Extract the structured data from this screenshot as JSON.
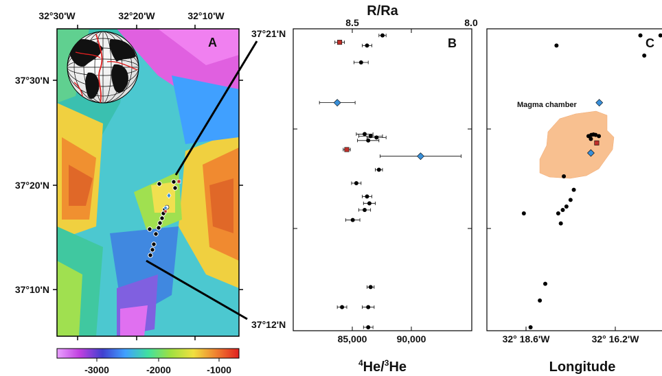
{
  "map": {
    "panel_label": "A",
    "lon_ticks": [
      "32°30'W",
      "32°20'W",
      "32°10'W"
    ],
    "lat_ticks": [
      "37°30'N",
      "37°20'N",
      "37°10'N"
    ],
    "profile_start": "37°21'N",
    "profile_end": "37°12'N",
    "colorbar_ticks": [
      "-3000",
      "-2000",
      "-1000"
    ],
    "colorbar_colors": [
      "#e9a0ff",
      "#c040e0",
      "#4040d0",
      "#40a0ff",
      "#40e0a0",
      "#a0e040",
      "#f0e040",
      "#f08030",
      "#e02020"
    ]
  },
  "panel_b": {
    "panel_label": "B",
    "top_axis_title": "R/Ra",
    "top_ticks": [
      "8.5",
      "8.0"
    ],
    "bottom_ticks": [
      "85,000",
      "90,000"
    ],
    "x_title_sup": "4",
    "x_title_a": "He/",
    "x_title_sup2": "3",
    "x_title_b": "He"
  },
  "panel_c": {
    "panel_label": "C",
    "bottom_ticks": [
      "32° 18.6'W",
      "32° 16.2'W"
    ],
    "x_title": "Longitude",
    "magma_label": "Magma chamber",
    "chamber_color": "#f8c090"
  },
  "chart_data": [
    {
      "type": "scatter",
      "title": "",
      "xlabel": "4He/3He",
      "ylabel": "",
      "secondary_xlabel": "R/Ra",
      "xlim": [
        80500,
        95500
      ],
      "ylim": [
        37.2,
        37.35
      ],
      "series": [
        {
          "marker": "circle",
          "color": "#000000",
          "points": [
            {
              "x": 88000,
              "y": 37.3467,
              "err": 300
            },
            {
              "x": 86700,
              "y": 37.3417,
              "err": 400
            },
            {
              "x": 86200,
              "y": 37.3333,
              "err": 600
            },
            {
              "x": 86500,
              "y": 37.2977,
              "err": 700
            },
            {
              "x": 87000,
              "y": 37.2967,
              "err": 1000
            },
            {
              "x": 87500,
              "y": 37.296,
              "err": 800
            },
            {
              "x": 86800,
              "y": 37.2945,
              "err": 900
            },
            {
              "x": 87700,
              "y": 37.28,
              "err": 300
            },
            {
              "x": 85800,
              "y": 37.2733,
              "err": 400
            },
            {
              "x": 86700,
              "y": 37.2667,
              "err": 400
            },
            {
              "x": 86900,
              "y": 37.2633,
              "err": 500
            },
            {
              "x": 86500,
              "y": 37.26,
              "err": 500
            },
            {
              "x": 85500,
              "y": 37.255,
              "err": 600
            },
            {
              "x": 87000,
              "y": 37.2217,
              "err": 300
            },
            {
              "x": 84600,
              "y": 37.2117,
              "err": 400
            },
            {
              "x": 86800,
              "y": 37.2117,
              "err": 500
            },
            {
              "x": 86800,
              "y": 37.2017,
              "err": 400
            }
          ]
        },
        {
          "marker": "square",
          "color": "#c0302a",
          "points": [
            {
              "x": 84400,
              "y": 37.3433,
              "err": 400
            },
            {
              "x": 85000,
              "y": 37.29,
              "err": 300
            }
          ]
        },
        {
          "marker": "diamond",
          "color": "#3a8fd8",
          "points": [
            {
              "x": 84200,
              "y": 37.3133,
              "err": 1500
            },
            {
              "x": 91200,
              "y": 37.2867,
              "err": 3400
            }
          ]
        }
      ]
    },
    {
      "type": "scatter",
      "title": "",
      "xlabel": "Longitude",
      "ylabel": "",
      "xlim": [
        -32.334,
        -32.253
      ],
      "ylim": [
        37.2,
        37.35
      ],
      "series": [
        {
          "marker": "circle",
          "color": "#000000",
          "points": [
            {
              "x": -32.3018,
              "y": 37.3417
            },
            {
              "x": -32.263,
              "y": 37.3467
            },
            {
              "x": -32.2612,
              "y": 37.3367
            },
            {
              "x": -32.2537,
              "y": 37.3467
            },
            {
              "x": -32.287,
              "y": 37.2967
            },
            {
              "x": -32.2857,
              "y": 37.2973
            },
            {
              "x": -32.2847,
              "y": 37.2975
            },
            {
              "x": -32.2837,
              "y": 37.2973
            },
            {
              "x": -32.2822,
              "y": 37.2967
            },
            {
              "x": -32.2859,
              "y": 37.2953
            },
            {
              "x": -32.2984,
              "y": 37.2767
            },
            {
              "x": -32.2938,
              "y": 37.27
            },
            {
              "x": -32.2953,
              "y": 37.265
            },
            {
              "x": -32.2972,
              "y": 37.2617
            },
            {
              "x": -32.2989,
              "y": 37.26
            },
            {
              "x": -32.301,
              "y": 37.2583
            },
            {
              "x": -32.3169,
              "y": 37.2583
            },
            {
              "x": -32.2998,
              "y": 37.2533
            },
            {
              "x": -32.307,
              "y": 37.2233
            },
            {
              "x": -32.3095,
              "y": 37.215
            },
            {
              "x": -32.3138,
              "y": 37.2017
            }
          ]
        },
        {
          "marker": "square",
          "color": "#c0302a",
          "points": [
            {
              "x": -32.2832,
              "y": 37.2933
            }
          ]
        },
        {
          "marker": "diamond",
          "color": "#3a8fd8",
          "points": [
            {
              "x": -32.282,
              "y": 37.3133
            },
            {
              "x": -32.2859,
              "y": 37.2883
            }
          ]
        }
      ]
    }
  ]
}
